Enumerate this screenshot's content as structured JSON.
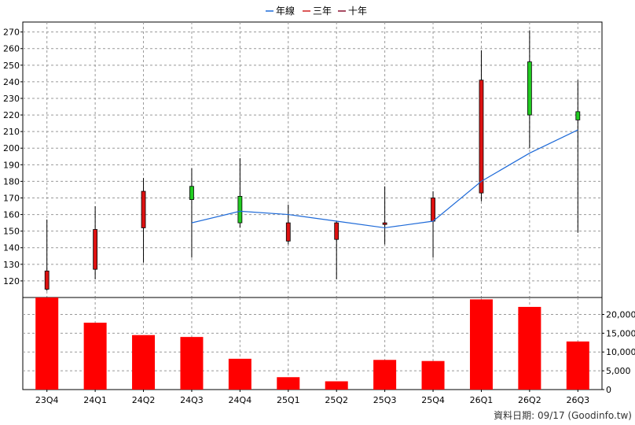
{
  "legend": [
    {
      "label": "年線",
      "color": "#1e6ad8"
    },
    {
      "label": "三年",
      "color": "#d02020"
    },
    {
      "label": "十年",
      "color": "#8a1030"
    }
  ],
  "footer": "資料日期: 09/17  (Goodinfo.tw)",
  "chart_data": [
    {
      "type": "candlestick",
      "categories": [
        "23Q4",
        "24Q1",
        "24Q2",
        "24Q3",
        "24Q4",
        "25Q1",
        "25Q2",
        "25Q3",
        "25Q4",
        "26Q1",
        "26Q2",
        "26Q3"
      ],
      "ohlc": [
        {
          "open": 126,
          "high": 157,
          "low": 114,
          "close": 115
        },
        {
          "open": 151,
          "high": 165,
          "low": 121,
          "close": 127
        },
        {
          "open": 174,
          "high": 182,
          "low": 131,
          "close": 152
        },
        {
          "open": 169,
          "high": 188,
          "low": 134,
          "close": 177
        },
        {
          "open": 155,
          "high": 194,
          "low": 152,
          "close": 171
        },
        {
          "open": 155,
          "high": 166,
          "low": 142,
          "close": 144
        },
        {
          "open": 155,
          "high": 156,
          "low": 121,
          "close": 145
        },
        {
          "open": 155,
          "high": 177,
          "low": 142,
          "close": 154
        },
        {
          "open": 170,
          "high": 174,
          "low": 134,
          "close": 156
        },
        {
          "open": 241,
          "high": 259,
          "low": 168,
          "close": 173
        },
        {
          "open": 220,
          "high": 271,
          "low": 200,
          "close": 252
        },
        {
          "open": 217,
          "high": 241,
          "low": 149,
          "close": 222
        }
      ],
      "up_color": "#22cc22",
      "down_color": "#dd1111",
      "line_series": [
        {
          "name": "年線",
          "color": "#1e6ad8",
          "values": [
            null,
            null,
            null,
            155,
            162,
            160,
            156,
            152,
            156,
            180,
            197,
            211
          ]
        }
      ],
      "y_ticks": [
        120,
        130,
        140,
        150,
        160,
        170,
        180,
        190,
        200,
        210,
        220,
        230,
        240,
        250,
        260,
        270
      ],
      "ylim": [
        110,
        276
      ],
      "grid": true
    },
    {
      "type": "bar",
      "categories": [
        "23Q4",
        "24Q1",
        "24Q2",
        "24Q3",
        "24Q4",
        "25Q1",
        "25Q2",
        "25Q3",
        "25Q4",
        "26Q1",
        "26Q2",
        "26Q3"
      ],
      "values": [
        24500,
        17800,
        14500,
        14000,
        8200,
        3300,
        2200,
        7900,
        7600,
        24000,
        22000,
        12800
      ],
      "color": "#ff0000",
      "y_ticks": [
        0,
        5000,
        10000,
        15000,
        20000
      ],
      "y_tick_labels": [
        "0",
        "5,000",
        "10,000",
        "15,000",
        "20,000"
      ],
      "ylim": [
        0,
        24500
      ],
      "grid": true
    }
  ]
}
